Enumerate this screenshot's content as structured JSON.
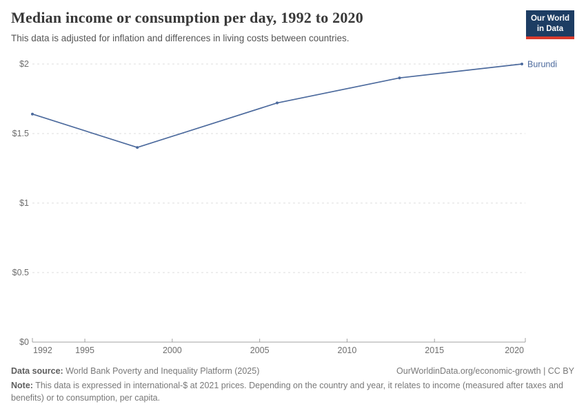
{
  "header": {
    "title": "Median income or consumption per day, 1992 to 2020",
    "subtitle": "This data is adjusted for inflation and differences in living costs between countries."
  },
  "logo": {
    "line1": "Our World",
    "line2": "in Data",
    "background": "#1d3d63",
    "accent": "#d93a2c"
  },
  "chart_data": {
    "type": "line",
    "title": "Median income or consumption per day, 1992 to 2020",
    "xlabel": "",
    "ylabel": "",
    "xlim": [
      1992,
      2020
    ],
    "ylim": [
      0,
      2
    ],
    "x_ticks": [
      1992,
      1995,
      2000,
      2005,
      2010,
      2015,
      2020
    ],
    "y_ticks": [
      {
        "value": 0,
        "label": "$0"
      },
      {
        "value": 0.5,
        "label": "$0.5"
      },
      {
        "value": 1,
        "label": "$1"
      },
      {
        "value": 1.5,
        "label": "$1.5"
      },
      {
        "value": 2,
        "label": "$2"
      }
    ],
    "grid": "horizontal-dashed",
    "legend_position": "end-of-line-label",
    "series": [
      {
        "name": "Burundi",
        "color": "#4c6a9d",
        "points": [
          {
            "x": 1992,
            "y": 1.64
          },
          {
            "x": 1998,
            "y": 1.4
          },
          {
            "x": 2006,
            "y": 1.72
          },
          {
            "x": 2013,
            "y": 1.9
          },
          {
            "x": 2020,
            "y": 2.0
          }
        ]
      }
    ]
  },
  "footer": {
    "datasource_label": "Data source:",
    "datasource_text": "World Bank Poverty and Inequality Platform (2025)",
    "attribution": "OurWorldinData.org/economic-growth | CC BY",
    "note_label": "Note:",
    "note_text": "This data is expressed in international-$ at 2021 prices. Depending on the country and year, it relates to income (measured after taxes and benefits) or to consumption, per capita."
  },
  "colors": {
    "line": "#4c6a9d",
    "grid": "#dddddd",
    "axis": "#a1a1a1",
    "tick_label": "#6e6e6e",
    "title": "#383838",
    "subtitle": "#555555",
    "footer": "#787878"
  }
}
